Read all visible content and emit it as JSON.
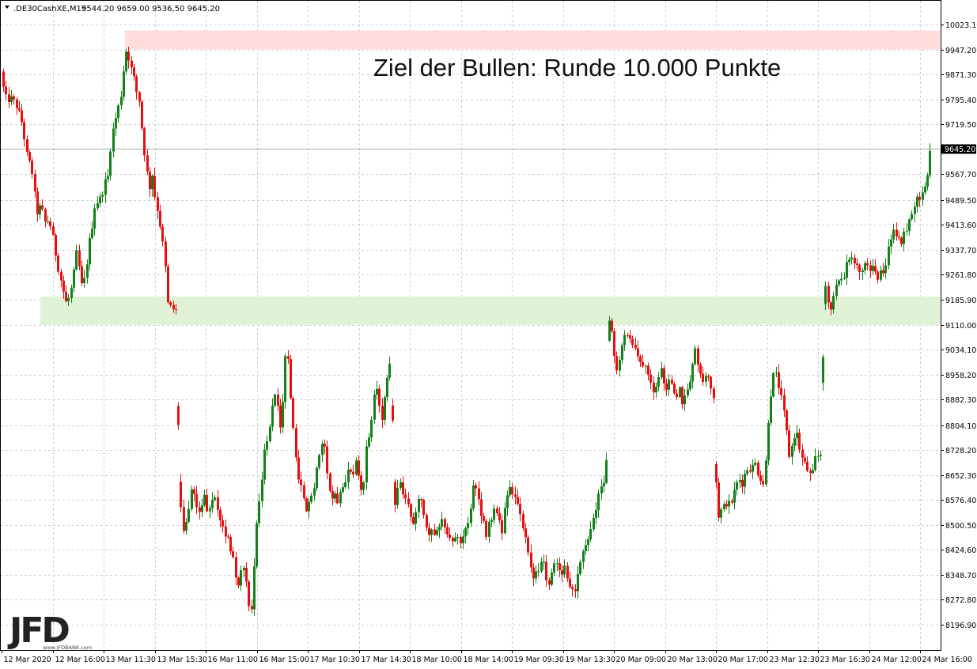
{
  "header": {
    "symbol": ".DE30CashXE,M15",
    "ohlc": "9544.20 9659.00 9536,50 9645.20"
  },
  "logo": {
    "text": "JFD",
    "subtext": "www.JFDBANK.com"
  },
  "colors": {
    "bull": "#14801a",
    "bear": "#e60f0f",
    "resistance_zone": "#ffdcdc",
    "support_zone": "#dff2d5",
    "grid": "#cfcfcf"
  },
  "chart_data": {
    "type": "candlestick",
    "annotation": "Ziel der Bullen: Runde 10.000 Punkte",
    "current_price": 9645.2,
    "current_price_label": "9645.20",
    "ylim": [
      8196.9,
      10060.0
    ],
    "y_ticks": [
      10023.1,
      9947.2,
      9871.3,
      9795.4,
      9719.5,
      9567.7,
      9489.5,
      9413.6,
      9337.7,
      9261.8,
      9185.9,
      9110.0,
      9034.1,
      8958.2,
      8882.3,
      8804.1,
      8728.2,
      8652.3,
      8576.4,
      8500.5,
      8424.6,
      8348.7,
      8272.8,
      8196.9
    ],
    "y_tick_labels": [
      "10023.10",
      "9947.20",
      "9871.30",
      "9795.40",
      "9719.50",
      "9567.70",
      "9489.50",
      "9413.60",
      "9337.70",
      "9261.80",
      "9185.90",
      "9110.00",
      "9034.10",
      "8958.20",
      "8882.30",
      "8804.10",
      "8728.20",
      "8652.30",
      "8576.40",
      "8500.50",
      "8424.60",
      "8348.70",
      "8272.80",
      "8196.90"
    ],
    "x_tick_labels": [
      "12 Mar 2020",
      "12 Mar 16:00",
      "13 Mar 11:30",
      "13 Mar 15:30",
      "16 Mar 11:00",
      "16 Mar 15:00",
      "17 Mar 10:30",
      "17 Mar 14:30",
      "18 Mar 10:00",
      "18 Mar 14:00",
      "19 Mar 09:30",
      "19 Mar 13:30",
      "20 Mar 09:00",
      "20 Mar 13:00",
      "20 Mar 17:00",
      "23 Mar 12:30",
      "23 Mar 16:30",
      "24 Mar 12:00",
      "24 Mar 16:00"
    ],
    "zones": [
      {
        "name": "resistance",
        "low": 9947.2,
        "high": 10005.0
      },
      {
        "name": "support",
        "low": 9110.0,
        "high": 9195.0
      }
    ],
    "path": [
      [
        0,
        9880
      ],
      [
        4,
        9830
      ],
      [
        8,
        9790
      ],
      [
        12,
        9800
      ],
      [
        20,
        9780
      ],
      [
        28,
        9720
      ],
      [
        34,
        9620
      ],
      [
        40,
        9580
      ],
      [
        46,
        9450
      ],
      [
        52,
        9470
      ],
      [
        56,
        9420
      ],
      [
        62,
        9430
      ],
      [
        66,
        9380
      ],
      [
        72,
        9300
      ],
      [
        78,
        9230
      ],
      [
        84,
        9170
      ],
      [
        88,
        9200
      ],
      [
        92,
        9240
      ],
      [
        96,
        9330
      ],
      [
        100,
        9280
      ],
      [
        104,
        9210
      ],
      [
        108,
        9270
      ],
      [
        112,
        9350
      ],
      [
        116,
        9410
      ],
      [
        120,
        9480
      ],
      [
        126,
        9490
      ],
      [
        132,
        9540
      ],
      [
        136,
        9560
      ],
      [
        140,
        9670
      ],
      [
        144,
        9720
      ],
      [
        148,
        9760
      ],
      [
        152,
        9800
      ],
      [
        156,
        9890
      ],
      [
        160,
        9960
      ],
      [
        164,
        9900
      ],
      [
        168,
        9870
      ],
      [
        172,
        9820
      ],
      [
        176,
        9790
      ],
      [
        180,
        9680
      ],
      [
        184,
        9600
      ],
      [
        188,
        9520
      ],
      [
        192,
        9570
      ],
      [
        196,
        9490
      ],
      [
        200,
        9450
      ],
      [
        204,
        9380
      ],
      [
        208,
        9300
      ],
      [
        212,
        9170
      ],
      [
        216,
        9160
      ],
      [
        220,
        9155
      ],
      [
        222,
        9150
      ],
      [
        226,
        8710
      ],
      [
        230,
        8460
      ],
      [
        234,
        8520
      ],
      [
        238,
        8530
      ],
      [
        242,
        8620
      ],
      [
        246,
        8570
      ],
      [
        250,
        8530
      ],
      [
        254,
        8560
      ],
      [
        258,
        8590
      ],
      [
        262,
        8520
      ],
      [
        266,
        8560
      ],
      [
        270,
        8580
      ],
      [
        274,
        8560
      ],
      [
        278,
        8520
      ],
      [
        282,
        8480
      ],
      [
        286,
        8470
      ],
      [
        290,
        8440
      ],
      [
        294,
        8410
      ],
      [
        298,
        8340
      ],
      [
        302,
        8320
      ],
      [
        306,
        8380
      ],
      [
        310,
        8350
      ],
      [
        314,
        8260
      ],
      [
        318,
        8240
      ],
      [
        322,
        8450
      ],
      [
        326,
        8540
      ],
      [
        330,
        8620
      ],
      [
        334,
        8730
      ],
      [
        338,
        8760
      ],
      [
        342,
        8830
      ],
      [
        346,
        8920
      ],
      [
        350,
        8860
      ],
      [
        354,
        8780
      ],
      [
        358,
        8890
      ],
      [
        362,
        9090
      ],
      [
        366,
        8900
      ],
      [
        370,
        8800
      ],
      [
        374,
        8680
      ],
      [
        378,
        8640
      ],
      [
        382,
        8600
      ],
      [
        386,
        8530
      ],
      [
        390,
        8560
      ],
      [
        394,
        8590
      ],
      [
        398,
        8640
      ],
      [
        402,
        8700
      ],
      [
        406,
        8760
      ],
      [
        410,
        8750
      ],
      [
        414,
        8650
      ],
      [
        418,
        8580
      ],
      [
        422,
        8600
      ],
      [
        426,
        8570
      ],
      [
        430,
        8610
      ],
      [
        434,
        8620
      ],
      [
        438,
        8660
      ],
      [
        442,
        8680
      ],
      [
        446,
        8640
      ],
      [
        450,
        8690
      ],
      [
        454,
        8640
      ],
      [
        458,
        8580
      ],
      [
        462,
        8720
      ],
      [
        466,
        8770
      ],
      [
        470,
        8830
      ],
      [
        474,
        8920
      ],
      [
        478,
        8890
      ],
      [
        482,
        8810
      ],
      [
        486,
        8880
      ],
      [
        490,
        8960
      ],
      [
        494,
        9030
      ],
      [
        498,
        8560
      ],
      [
        502,
        8620
      ],
      [
        506,
        8640
      ],
      [
        510,
        8580
      ],
      [
        514,
        8570
      ],
      [
        518,
        8520
      ],
      [
        522,
        8510
      ],
      [
        526,
        8530
      ],
      [
        530,
        8590
      ],
      [
        534,
        8560
      ],
      [
        538,
        8500
      ],
      [
        542,
        8470
      ],
      [
        546,
        8490
      ],
      [
        550,
        8480
      ],
      [
        554,
        8500
      ],
      [
        558,
        8520
      ],
      [
        562,
        8480
      ],
      [
        566,
        8470
      ],
      [
        570,
        8440
      ],
      [
        574,
        8460
      ],
      [
        578,
        8470
      ],
      [
        582,
        8450
      ],
      [
        586,
        8460
      ],
      [
        590,
        8500
      ],
      [
        594,
        8550
      ],
      [
        598,
        8610
      ],
      [
        602,
        8600
      ],
      [
        606,
        8560
      ],
      [
        610,
        8520
      ],
      [
        614,
        8470
      ],
      [
        618,
        8500
      ],
      [
        622,
        8530
      ],
      [
        626,
        8560
      ],
      [
        630,
        8510
      ],
      [
        634,
        8480
      ],
      [
        638,
        8560
      ],
      [
        642,
        8610
      ],
      [
        646,
        8600
      ],
      [
        650,
        8570
      ],
      [
        654,
        8580
      ],
      [
        658,
        8520
      ],
      [
        662,
        8470
      ],
      [
        666,
        8430
      ],
      [
        670,
        8370
      ],
      [
        674,
        8340
      ],
      [
        678,
        8350
      ],
      [
        682,
        8380
      ],
      [
        686,
        8400
      ],
      [
        690,
        8340
      ],
      [
        694,
        8330
      ],
      [
        698,
        8360
      ],
      [
        702,
        8400
      ],
      [
        706,
        8380
      ],
      [
        710,
        8360
      ],
      [
        714,
        8370
      ],
      [
        718,
        8330
      ],
      [
        722,
        8300
      ],
      [
        726,
        8280
      ],
      [
        730,
        8350
      ],
      [
        734,
        8400
      ],
      [
        738,
        8450
      ],
      [
        742,
        8440
      ],
      [
        746,
        8480
      ],
      [
        750,
        8520
      ],
      [
        754,
        8570
      ],
      [
        758,
        8600
      ],
      [
        762,
        8620
      ],
      [
        766,
        8650
      ],
      [
        770,
        9190
      ],
      [
        774,
        9050
      ],
      [
        778,
        8970
      ],
      [
        782,
        9000
      ],
      [
        786,
        9060
      ],
      [
        790,
        9090
      ],
      [
        794,
        9070
      ],
      [
        798,
        9060
      ],
      [
        802,
        9040
      ],
      [
        806,
        9010
      ],
      [
        810,
        8990
      ],
      [
        814,
        9000
      ],
      [
        818,
        8980
      ],
      [
        822,
        8950
      ],
      [
        826,
        8910
      ],
      [
        830,
        8940
      ],
      [
        834,
        8980
      ],
      [
        838,
        8950
      ],
      [
        842,
        8920
      ],
      [
        846,
        8940
      ],
      [
        850,
        8910
      ],
      [
        854,
        8890
      ],
      [
        858,
        8920
      ],
      [
        862,
        8880
      ],
      [
        866,
        8900
      ],
      [
        870,
        8920
      ],
      [
        874,
        8980
      ],
      [
        878,
        9030
      ],
      [
        882,
        9000
      ],
      [
        886,
        8950
      ],
      [
        890,
        8920
      ],
      [
        894,
        8970
      ],
      [
        898,
        8920
      ],
      [
        902,
        8870
      ],
      [
        906,
        8520
      ],
      [
        910,
        8540
      ],
      [
        914,
        8550
      ],
      [
        918,
        8570
      ],
      [
        922,
        8560
      ],
      [
        926,
        8580
      ],
      [
        930,
        8620
      ],
      [
        934,
        8640
      ],
      [
        938,
        8630
      ],
      [
        942,
        8660
      ],
      [
        946,
        8680
      ],
      [
        950,
        8670
      ],
      [
        954,
        8690
      ],
      [
        958,
        8660
      ],
      [
        962,
        8640
      ],
      [
        966,
        8620
      ],
      [
        970,
        8800
      ],
      [
        974,
        8900
      ],
      [
        978,
        8960
      ],
      [
        982,
        8950
      ],
      [
        986,
        8900
      ],
      [
        990,
        8850
      ],
      [
        994,
        8780
      ],
      [
        998,
        8700
      ],
      [
        1002,
        8760
      ],
      [
        1006,
        8790
      ],
      [
        1010,
        8740
      ],
      [
        1014,
        8700
      ],
      [
        1018,
        8680
      ],
      [
        1022,
        8660
      ],
      [
        1026,
        8640
      ],
      [
        1030,
        8700
      ],
      [
        1034,
        8710
      ],
      [
        1038,
        8720
      ],
      [
        1042,
        9270
      ],
      [
        1046,
        9180
      ],
      [
        1050,
        9150
      ],
      [
        1054,
        9200
      ],
      [
        1058,
        9230
      ],
      [
        1062,
        9250
      ],
      [
        1066,
        9260
      ],
      [
        1070,
        9300
      ],
      [
        1074,
        9310
      ],
      [
        1078,
        9300
      ],
      [
        1082,
        9290
      ],
      [
        1086,
        9270
      ],
      [
        1090,
        9280
      ],
      [
        1094,
        9300
      ],
      [
        1098,
        9270
      ],
      [
        1102,
        9290
      ],
      [
        1106,
        9270
      ],
      [
        1110,
        9250
      ],
      [
        1114,
        9270
      ],
      [
        1118,
        9290
      ],
      [
        1122,
        9330
      ],
      [
        1126,
        9380
      ],
      [
        1130,
        9400
      ],
      [
        1134,
        9380
      ],
      [
        1138,
        9360
      ],
      [
        1142,
        9380
      ],
      [
        1146,
        9410
      ],
      [
        1150,
        9440
      ],
      [
        1154,
        9470
      ],
      [
        1158,
        9490
      ],
      [
        1162,
        9500
      ],
      [
        1166,
        9520
      ],
      [
        1170,
        9550
      ],
      [
        1174,
        9590
      ],
      [
        1176,
        9650
      ]
    ]
  }
}
